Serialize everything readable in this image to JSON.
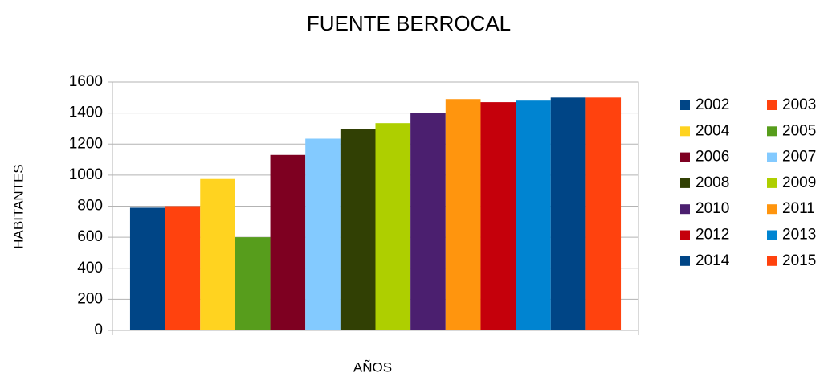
{
  "chart_data": {
    "type": "bar",
    "title": "FUENTE BERROCAL",
    "x_label": "AÑOS",
    "y_label": "HABITANTES",
    "categories": [
      null
    ],
    "series": [
      {
        "name": "2002",
        "color": "#004586",
        "values": [
          790
        ]
      },
      {
        "name": "2003",
        "color": "#ff420e",
        "values": [
          800
        ]
      },
      {
        "name": "2004",
        "color": "#ffd320",
        "values": [
          975
        ]
      },
      {
        "name": "2005",
        "color": "#579d1c",
        "values": [
          600
        ]
      },
      {
        "name": "2006",
        "color": "#7e0021",
        "values": [
          1130
        ]
      },
      {
        "name": "2007",
        "color": "#83caff",
        "values": [
          1235
        ]
      },
      {
        "name": "2008",
        "color": "#314004",
        "values": [
          1295
        ]
      },
      {
        "name": "2009",
        "color": "#aecf00",
        "values": [
          1335
        ]
      },
      {
        "name": "2010",
        "color": "#4b1f6f",
        "values": [
          1400
        ]
      },
      {
        "name": "2011",
        "color": "#ff950e",
        "values": [
          1490
        ]
      },
      {
        "name": "2012",
        "color": "#c5000b",
        "values": [
          1470
        ]
      },
      {
        "name": "2013",
        "color": "#0084d1",
        "values": [
          1480
        ]
      },
      {
        "name": "2014",
        "color": "#004586",
        "values": [
          1500
        ]
      },
      {
        "name": "2015",
        "color": "#ff420e",
        "values": [
          1500
        ]
      }
    ],
    "ylim": [
      0,
      1600
    ],
    "yticks": [
      0,
      200,
      400,
      600,
      800,
      1000,
      1200,
      1400,
      1600
    ],
    "grid": true,
    "legend": "right"
  }
}
